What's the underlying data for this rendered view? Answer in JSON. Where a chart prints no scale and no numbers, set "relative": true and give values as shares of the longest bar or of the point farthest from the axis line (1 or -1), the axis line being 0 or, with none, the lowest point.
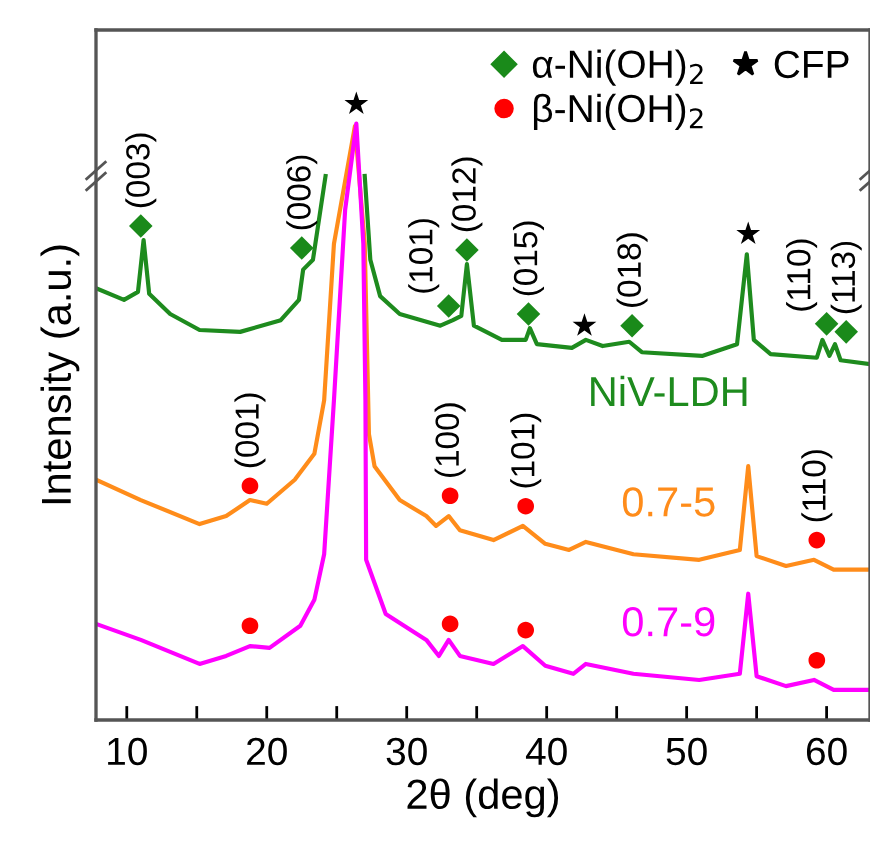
{
  "chart_data": {
    "type": "line",
    "relative": true,
    "xlabel": "2θ (deg)",
    "ylabel": "Intensity (a.u.)",
    "xlim": [
      7.8,
      63.1
    ],
    "xticks": [
      10,
      {
        "value": 15,
        "label": null
      },
      20,
      {
        "value": 25,
        "label": null
      },
      30,
      {
        "value": 35,
        "label": null
      },
      40,
      {
        "value": 45,
        "label": null
      },
      50,
      {
        "value": 55,
        "label": null
      },
      60
    ],
    "tick_labels": "x",
    "grid": false,
    "legend": "top right",
    "marker": "none",
    "line_style": "solid",
    "series": [
      {
        "name": "NiV-LDH",
        "color": "#1e8b1e",
        "x": [
          7.8,
          9.8,
          10.8,
          11.2,
          11.6,
          13.1,
          15.2,
          18.1,
          21.0,
          22.3,
          22.6,
          23.3,
          24.2,
          25.6,
          27.0,
          27.4,
          28.1,
          29.5,
          32.4,
          33.3,
          33.9,
          34.3,
          34.8,
          36.8,
          38.5,
          38.8,
          39.3,
          41.8,
          42.8,
          44.0,
          45.9,
          46.8,
          51.1,
          53.6,
          54.3,
          54.8,
          56.0,
          59.3,
          59.7,
          60.2,
          60.6,
          61.0,
          63.0
        ],
        "values": [
          0.701,
          0.682,
          0.695,
          0.779,
          0.692,
          0.659,
          0.633,
          0.63,
          0.649,
          0.682,
          0.731,
          0.747,
          0.883,
          null,
          0.883,
          0.747,
          0.688,
          0.659,
          0.64,
          0.649,
          0.656,
          0.74,
          0.64,
          0.617,
          0.617,
          0.636,
          0.61,
          0.604,
          0.617,
          0.607,
          0.614,
          0.597,
          0.591,
          0.61,
          0.756,
          0.617,
          0.594,
          0.588,
          0.617,
          0.591,
          0.61,
          0.584,
          0.578
        ]
      },
      {
        "name": "0.7-5",
        "color": "#ff8c1a",
        "x": [
          7.8,
          11.0,
          15.2,
          17.1,
          18.8,
          20.0,
          22.0,
          23.4,
          24.1,
          24.8,
          26.3,
          27.0,
          27.3,
          27.7,
          29.5,
          31.4,
          32.1,
          33.0,
          33.8,
          36.2,
          38.3,
          39.9,
          41.6,
          42.8,
          46.2,
          50.9,
          53.8,
          54.4,
          55.0,
          57.1,
          59.1,
          60.5,
          63.1
        ],
        "values": [
          0.39,
          0.357,
          0.318,
          0.331,
          0.357,
          0.351,
          0.39,
          0.432,
          0.519,
          0.773,
          0.964,
          0.773,
          0.464,
          0.412,
          0.357,
          0.331,
          0.315,
          0.331,
          0.308,
          0.292,
          0.315,
          0.286,
          0.276,
          0.289,
          0.269,
          0.26,
          0.276,
          0.412,
          0.266,
          0.25,
          0.26,
          0.244,
          0.244
        ]
      },
      {
        "name": "0.7-9",
        "color": "#ff00ff",
        "x": [
          7.8,
          11.0,
          15.2,
          17.1,
          18.8,
          20.2,
          22.4,
          23.4,
          24.1,
          24.5,
          24.8,
          25.6,
          26.4,
          26.9,
          27.05,
          27.1,
          28.5,
          31.4,
          32.3,
          33.0,
          33.8,
          36.2,
          38.3,
          39.9,
          41.9,
          42.8,
          46.2,
          50.9,
          53.8,
          54.4,
          55.0,
          57.1,
          59.1,
          60.5,
          63.1
        ],
        "values": [
          0.156,
          0.13,
          0.091,
          0.104,
          0.12,
          0.117,
          0.153,
          0.195,
          0.269,
          0.412,
          0.519,
          0.828,
          0.968,
          0.773,
          0.519,
          0.26,
          0.172,
          0.13,
          0.104,
          0.13,
          0.104,
          0.091,
          0.12,
          0.088,
          0.075,
          0.091,
          0.075,
          0.065,
          0.075,
          0.205,
          0.071,
          0.055,
          0.065,
          0.049,
          0.049
        ]
      },
      {
        "name": "α-Ni(OH)$_{2}$",
        "type": "scatter",
        "marker": "diamond",
        "color": "#1a8a1a",
        "x": [
          11.0,
          22.5,
          33.0,
          34.3,
          38.7,
          46.1,
          60.0,
          61.4
        ],
        "values": [
          0.802,
          0.766,
          0.672,
          0.763,
          0.659,
          0.64,
          0.643,
          0.63
        ]
      },
      {
        "name": "β-Ni(OH)$_{2}$",
        "type": "scatter",
        "marker": "circle",
        "color": "#ff0000",
        "x": [
          18.8,
          33.1,
          38.5,
          59.3,
          18.8,
          33.1,
          38.5,
          59.3
        ],
        "values": [
          0.38,
          0.364,
          0.347,
          0.292,
          0.153,
          0.156,
          0.146,
          0.097
        ]
      },
      {
        "name": "CFP",
        "type": "scatter",
        "marker": "star",
        "color": "#000000",
        "x": [
          26.4,
          42.7,
          54.4
        ],
        "values": [
          1.0,
          0.64,
          0.789
        ]
      }
    ],
    "annotations": [
      "(003)",
      "(006)",
      "(101)",
      "(012)",
      "(015)",
      "(018)",
      "(110)",
      "(113)",
      "(001)",
      "(100)",
      "(101)",
      "(110)"
    ]
  }
}
